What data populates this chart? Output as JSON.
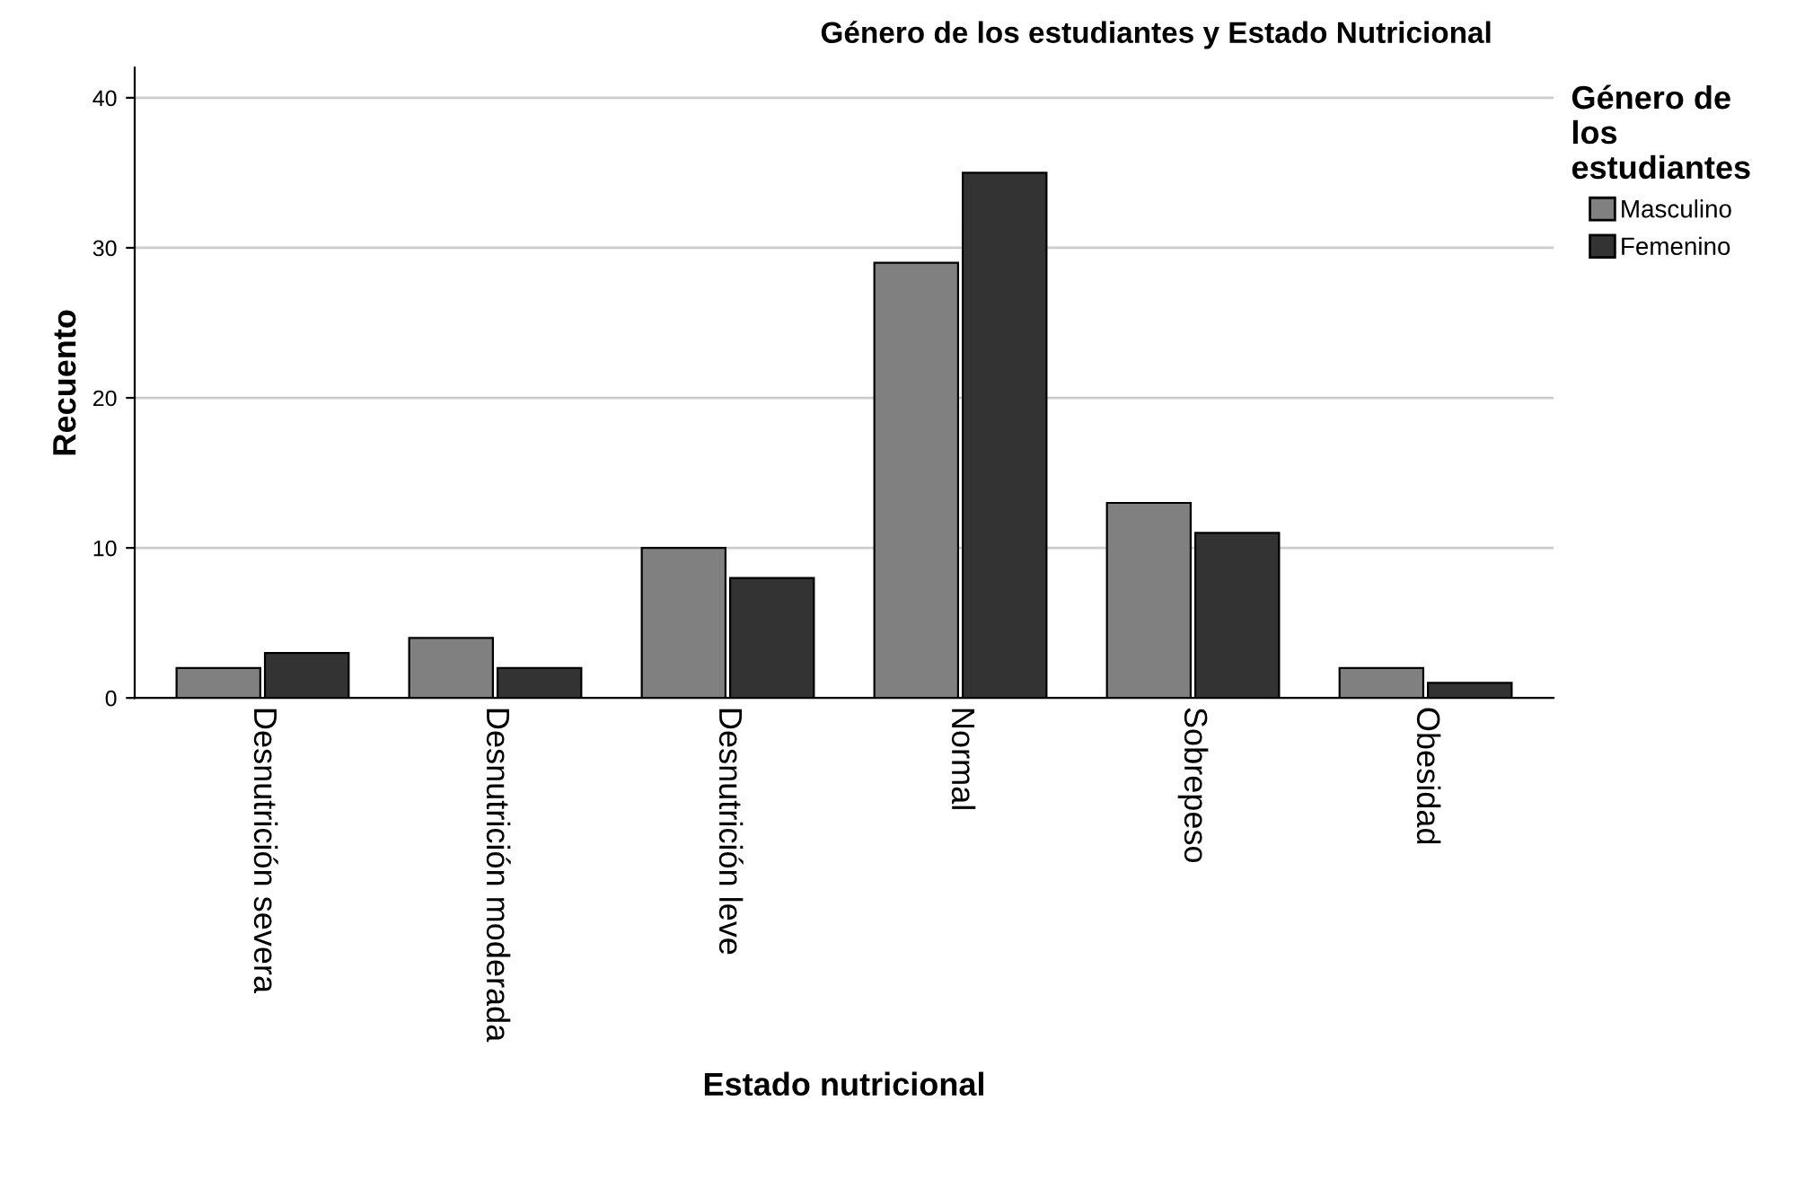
{
  "chart_data": {
    "type": "bar",
    "title": "Género de los estudiantes y Estado Nutricional",
    "xlabel": "Estado nutricional",
    "ylabel": "Recuento",
    "legend_title": "Género de\nlos\nestudiantes",
    "categories": [
      "Desnutrición severa",
      "Desnutrición moderada",
      "Desnutrición leve",
      "Normal",
      "Sobrepeso",
      "Obesidad"
    ],
    "series": [
      {
        "name": "Masculino",
        "color": "#808080",
        "values": [
          2,
          4,
          10,
          29,
          13,
          2
        ]
      },
      {
        "name": "Femenino",
        "color": "#333333",
        "values": [
          3,
          2,
          8,
          35,
          11,
          1
        ]
      }
    ],
    "ylim": [
      0,
      42
    ],
    "yticks": [
      0,
      10,
      20,
      30,
      40
    ],
    "grid": "y",
    "legend": "right"
  }
}
